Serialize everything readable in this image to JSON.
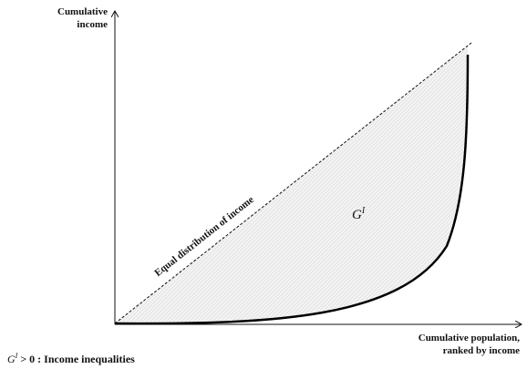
{
  "y_axis_label": [
    "Cumulative",
    "income"
  ],
  "x_axis_label": [
    "Cumulative population,",
    "ranked by income"
  ],
  "diagonal_label": "Equal distribution of income",
  "area_label": {
    "symbol": "G",
    "superscript": "I"
  },
  "caption": {
    "symbol": "G",
    "superscript": "I",
    "text": " > 0 : Income inequalities"
  }
}
